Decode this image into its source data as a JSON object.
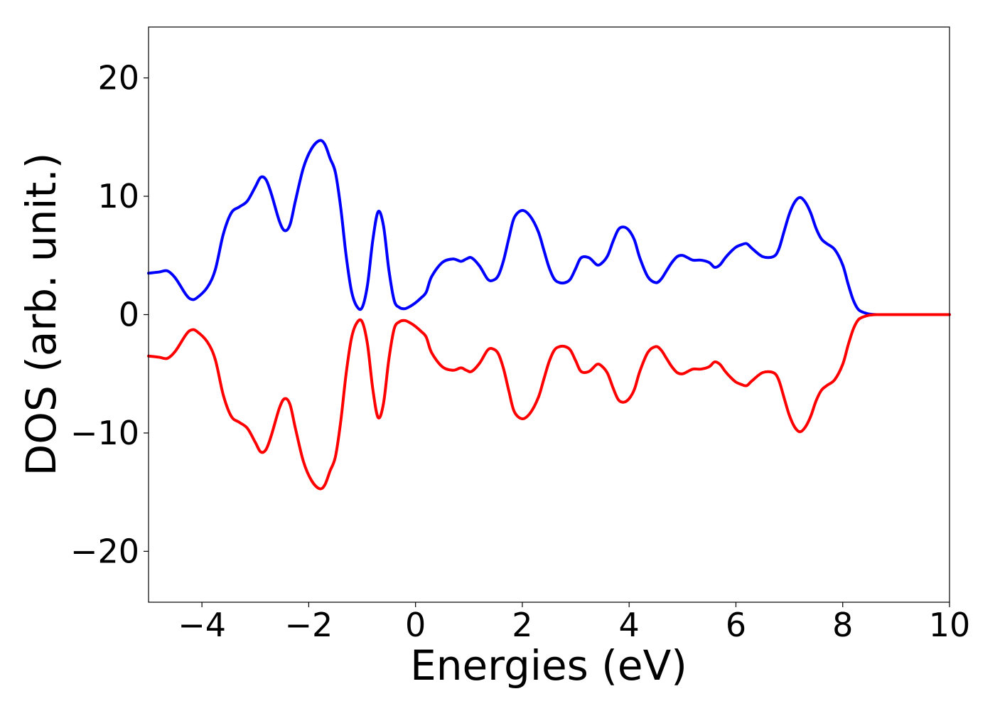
{
  "chart_data": {
    "type": "line",
    "title": "",
    "xlabel": "Energies (eV)",
    "ylabel": "DOS (arb. unit.)",
    "xlim": [
      -5,
      10
    ],
    "ylim": [
      -24.3,
      24.3
    ],
    "x_ticks": [
      -4,
      -2,
      0,
      2,
      4,
      6,
      8,
      10
    ],
    "y_ticks": [
      -20,
      -10,
      0,
      10,
      20
    ],
    "x_tick_labels": [
      "−4",
      "−2",
      "0",
      "2",
      "4",
      "6",
      "8",
      "10"
    ],
    "y_tick_labels": [
      "−20",
      "−10",
      "0",
      "10",
      "20"
    ],
    "grid": false,
    "legend": "none",
    "x": [
      -5.0,
      -4.8,
      -4.65,
      -4.5,
      -4.3,
      -4.2,
      -4.1,
      -3.9,
      -3.75,
      -3.6,
      -3.45,
      -3.3,
      -3.15,
      -3.0,
      -2.9,
      -2.8,
      -2.7,
      -2.55,
      -2.45,
      -2.35,
      -2.25,
      -2.1,
      -1.95,
      -1.8,
      -1.7,
      -1.6,
      -1.5,
      -1.4,
      -1.3,
      -1.2,
      -1.1,
      -1.0,
      -0.9,
      -0.8,
      -0.7,
      -0.6,
      -0.5,
      -0.4,
      -0.3,
      -0.2,
      -0.1,
      0.0,
      0.1,
      0.2,
      0.3,
      0.5,
      0.7,
      0.85,
      0.95,
      1.05,
      1.2,
      1.35,
      1.45,
      1.55,
      1.65,
      1.75,
      1.85,
      2.0,
      2.15,
      2.3,
      2.4,
      2.5,
      2.6,
      2.7,
      2.8,
      2.9,
      3.0,
      3.1,
      3.25,
      3.4,
      3.5,
      3.6,
      3.7,
      3.8,
      3.9,
      4.0,
      4.1,
      4.2,
      4.35,
      4.5,
      4.6,
      4.7,
      4.8,
      4.9,
      5.0,
      5.1,
      5.2,
      5.35,
      5.5,
      5.6,
      5.7,
      5.8,
      5.9,
      6.0,
      6.1,
      6.2,
      6.3,
      6.5,
      6.7,
      6.8,
      6.9,
      7.0,
      7.1,
      7.2,
      7.3,
      7.4,
      7.5,
      7.6,
      7.7,
      7.85,
      8.0,
      8.1,
      8.2,
      8.3,
      8.45,
      8.55,
      8.65,
      8.75,
      8.85,
      8.95,
      9.05,
      9.2,
      9.4,
      10.0
    ],
    "series": [
      {
        "color": "#0000ff",
        "values": [
          3.5,
          3.6,
          3.7,
          3.1,
          1.7,
          1.3,
          1.4,
          2.3,
          3.8,
          6.8,
          8.6,
          9.1,
          9.6,
          10.8,
          11.6,
          11.4,
          10.2,
          7.9,
          7.1,
          7.6,
          9.6,
          12.4,
          14.0,
          14.7,
          14.4,
          13.2,
          12.0,
          9.0,
          5.0,
          2.0,
          0.7,
          0.6,
          2.5,
          6.3,
          8.7,
          7.5,
          3.8,
          1.2,
          0.6,
          0.5,
          0.7,
          1.0,
          1.4,
          1.9,
          3.2,
          4.4,
          4.7,
          4.5,
          4.7,
          4.8,
          4.1,
          3.0,
          2.9,
          3.3,
          4.6,
          6.5,
          8.2,
          8.8,
          8.3,
          7.0,
          5.5,
          4.0,
          3.0,
          2.7,
          2.7,
          3.0,
          3.9,
          4.8,
          4.8,
          4.2,
          4.4,
          5.0,
          6.2,
          7.2,
          7.4,
          7.1,
          6.3,
          4.8,
          3.2,
          2.7,
          3.0,
          3.7,
          4.4,
          4.9,
          5.0,
          4.8,
          4.6,
          4.6,
          4.4,
          4.0,
          4.2,
          4.8,
          5.3,
          5.7,
          5.9,
          6.0,
          5.6,
          4.9,
          4.9,
          5.5,
          7.0,
          8.5,
          9.5,
          9.9,
          9.5,
          8.6,
          7.3,
          6.4,
          6.0,
          5.5,
          4.2,
          2.6,
          1.2,
          0.4,
          0.1,
          0.02,
          0.0,
          0.0,
          0.0,
          0.0,
          0.0,
          0.0,
          0.0,
          0.0
        ]
      },
      {
        "color": "#ff0000",
        "values": [
          -3.5,
          -3.6,
          -3.7,
          -3.1,
          -1.7,
          -1.3,
          -1.4,
          -2.3,
          -3.8,
          -6.8,
          -8.6,
          -9.1,
          -9.6,
          -10.8,
          -11.6,
          -11.4,
          -10.2,
          -7.9,
          -7.1,
          -7.6,
          -9.6,
          -12.4,
          -14.0,
          -14.7,
          -14.4,
          -13.2,
          -12.0,
          -9.0,
          -5.0,
          -2.0,
          -0.7,
          -0.6,
          -2.5,
          -6.3,
          -8.7,
          -7.5,
          -3.8,
          -1.2,
          -0.6,
          -0.5,
          -0.7,
          -1.0,
          -1.4,
          -1.9,
          -3.2,
          -4.4,
          -4.7,
          -4.5,
          -4.7,
          -4.8,
          -4.1,
          -3.0,
          -2.9,
          -3.3,
          -4.6,
          -6.5,
          -8.2,
          -8.8,
          -8.3,
          -7.0,
          -5.5,
          -4.0,
          -3.0,
          -2.7,
          -2.7,
          -3.0,
          -3.9,
          -4.8,
          -4.8,
          -4.2,
          -4.4,
          -5.0,
          -6.2,
          -7.2,
          -7.4,
          -7.1,
          -6.3,
          -4.8,
          -3.2,
          -2.7,
          -3.0,
          -3.7,
          -4.4,
          -4.9,
          -5.0,
          -4.8,
          -4.6,
          -4.6,
          -4.4,
          -4.0,
          -4.2,
          -4.8,
          -5.3,
          -5.7,
          -5.9,
          -6.0,
          -5.6,
          -4.9,
          -4.9,
          -5.5,
          -7.0,
          -8.5,
          -9.5,
          -9.9,
          -9.5,
          -8.6,
          -7.3,
          -6.4,
          -6.0,
          -5.5,
          -4.2,
          -2.6,
          -1.2,
          -0.4,
          -0.1,
          -0.02,
          0.0,
          0.0,
          0.0,
          0.0,
          0.0,
          0.0,
          0.0,
          0.0
        ]
      }
    ]
  }
}
